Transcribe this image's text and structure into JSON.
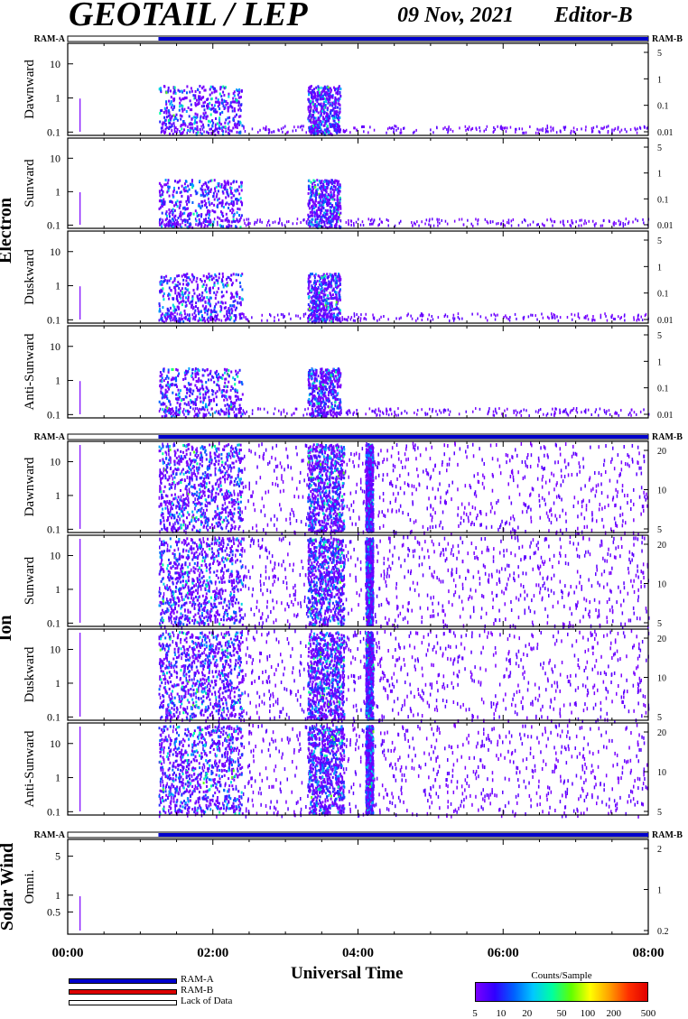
{
  "header": {
    "title": "GEOTAIL / LEP",
    "date": "09 Nov, 2021",
    "editor": "Editor-B"
  },
  "colors": {
    "ram_a": "#0000cc",
    "ram_b": "#dd0000",
    "lack": "#ffffff"
  },
  "chart_data": {
    "type": "heatmap",
    "xlabel": "Universal Time",
    "x_ticks": [
      "00:00",
      "02:00",
      "04:00",
      "06:00",
      "08:00"
    ],
    "x_range_hours": [
      0,
      8
    ],
    "ram_strip_labels": {
      "left": "RAM-A",
      "right": "RAM-B"
    },
    "ram_coverage": {
      "lack_of_data_hours": [
        0,
        1.25
      ],
      "ram_a_hours": [
        1.25,
        8
      ]
    },
    "groups": [
      {
        "name": "Electron",
        "left_ticks": [
          "10",
          "1",
          "0.1"
        ],
        "left_values": [
          10,
          1,
          0.1
        ],
        "left_range": [
          0.08,
          40
        ],
        "right_ticks": [
          "5",
          "1",
          "0.1",
          "0.01"
        ],
        "panels": [
          {
            "label": "Dawnward"
          },
          {
            "label": "Sunward"
          },
          {
            "label": "Duskward"
          },
          {
            "label": "Anti-Sunward"
          }
        ]
      },
      {
        "name": "Ion",
        "left_ticks": [
          "10",
          "1",
          "0.1"
        ],
        "left_values": [
          10,
          1,
          0.1
        ],
        "left_range": [
          0.08,
          40
        ],
        "right_ticks": [
          "20",
          "10",
          "5"
        ],
        "panels": [
          {
            "label": "Dawnward"
          },
          {
            "label": "Sunward"
          },
          {
            "label": "Duskward"
          },
          {
            "label": "Anti-Sunward"
          }
        ]
      },
      {
        "name": "Solar Wind",
        "left_ticks": [
          "5",
          "1",
          "0.5"
        ],
        "left_values": [
          5,
          1,
          0.5
        ],
        "left_range": [
          0.2,
          10
        ],
        "right_ticks": [
          "2",
          "1",
          "0.2"
        ],
        "panels": [
          {
            "label": "Omni."
          }
        ]
      }
    ],
    "activity_intervals_hours": {
      "electron_intense": [
        [
          1.25,
          2.4
        ],
        [
          3.3,
          3.75
        ]
      ],
      "ion_intense": [
        [
          1.25,
          2.4
        ],
        [
          3.3,
          3.8
        ],
        [
          4.1,
          4.2
        ]
      ],
      "background_until": 8
    },
    "legend": [
      {
        "label": "RAM-A"
      },
      {
        "label": "RAM-B"
      },
      {
        "label": "Lack of Data"
      }
    ],
    "colorbar": {
      "title": "Counts/Sample",
      "ticks": [
        "5",
        "10",
        "20",
        "50",
        "100",
        "200",
        "500"
      ],
      "values": [
        5,
        10,
        20,
        50,
        100,
        200,
        500
      ]
    }
  }
}
